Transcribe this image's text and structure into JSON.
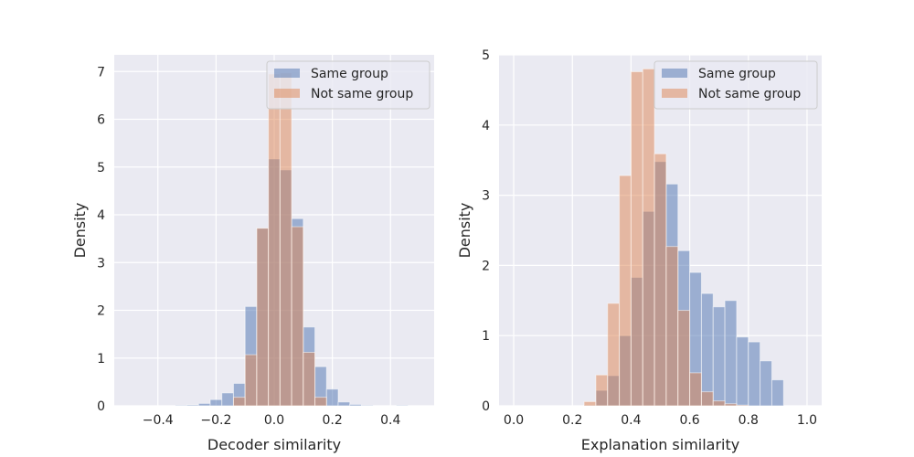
{
  "chart_data": [
    {
      "type": "histogram",
      "xlabel": "Decoder similarity",
      "ylabel": "Density",
      "xlim": [
        -0.55,
        0.55
      ],
      "ylim": [
        0,
        7.35
      ],
      "xticks": [
        -0.4,
        -0.2,
        0.0,
        0.2,
        0.4
      ],
      "xtick_labels": [
        "−0.4",
        "−0.2",
        "0.0",
        "0.2",
        "0.4"
      ],
      "yticks": [
        0,
        1,
        2,
        3,
        4,
        5,
        6,
        7
      ],
      "ytick_labels": [
        "0",
        "1",
        "2",
        "3",
        "4",
        "5",
        "6",
        "7"
      ],
      "bin_edges": [
        -0.5,
        -0.46,
        -0.42,
        -0.38,
        -0.34,
        -0.3,
        -0.26,
        -0.22,
        -0.18,
        -0.14,
        -0.1,
        -0.06,
        -0.02,
        0.02,
        0.06,
        0.1,
        0.14,
        0.18,
        0.22,
        0.26,
        0.3,
        0.34,
        0.38,
        0.42,
        0.46,
        0.5
      ],
      "series": [
        {
          "name": "Same group",
          "color": "#4c72b0",
          "values": [
            0,
            0,
            0,
            0,
            0.01,
            0.02,
            0.05,
            0.13,
            0.27,
            0.47,
            2.08,
            3.72,
            5.17,
            4.94,
            3.92,
            1.65,
            0.82,
            0.35,
            0.08,
            0.03,
            0.01,
            0,
            0,
            0.01,
            0
          ]
        },
        {
          "name": "Not same group",
          "color": "#dd8452",
          "values": [
            0,
            0,
            0,
            0,
            0,
            0,
            0,
            0,
            0,
            0.18,
            1.07,
            3.72,
            6.95,
            6.97,
            3.75,
            1.12,
            0.18,
            0,
            0,
            0,
            0,
            0,
            0,
            0,
            0
          ]
        }
      ],
      "legend": [
        "Same group",
        "Not same group"
      ],
      "legend_position": "top-right",
      "grid": true
    },
    {
      "type": "histogram",
      "xlabel": "Explanation similarity",
      "ylabel": "Density",
      "xlim": [
        -0.05,
        1.05
      ],
      "ylim": [
        0,
        5.0
      ],
      "xticks": [
        0.0,
        0.2,
        0.4,
        0.6,
        0.8,
        1.0
      ],
      "xtick_labels": [
        "0.0",
        "0.2",
        "0.4",
        "0.6",
        "0.8",
        "1.0"
      ],
      "yticks": [
        0,
        1,
        2,
        3,
        4,
        5
      ],
      "ytick_labels": [
        "0",
        "1",
        "2",
        "3",
        "4",
        "5"
      ],
      "bin_edges": [
        0.0,
        0.04,
        0.08,
        0.12,
        0.16,
        0.2,
        0.24,
        0.28,
        0.32,
        0.36,
        0.4,
        0.44,
        0.48,
        0.52,
        0.56,
        0.6,
        0.64,
        0.68,
        0.72,
        0.76,
        0.8,
        0.84,
        0.88,
        0.92,
        0.96,
        1.0
      ],
      "series": [
        {
          "name": "Same group",
          "color": "#4c72b0",
          "values": [
            0,
            0,
            0,
            0,
            0,
            0,
            0.01,
            0.22,
            0.43,
            1.0,
            1.83,
            2.77,
            3.48,
            3.16,
            2.21,
            1.9,
            1.6,
            1.41,
            1.5,
            0.98,
            0.91,
            0.64,
            0.37,
            0,
            0
          ]
        },
        {
          "name": "Not same group",
          "color": "#dd8452",
          "values": [
            0,
            0,
            0,
            0,
            0,
            0,
            0.06,
            0.44,
            1.46,
            3.28,
            4.76,
            4.8,
            3.59,
            2.27,
            1.36,
            0.47,
            0.2,
            0.07,
            0.03,
            0.01,
            0,
            0,
            0,
            0,
            0
          ]
        }
      ],
      "legend": [
        "Same group",
        "Not same group"
      ],
      "legend_position": "top-right",
      "grid": true
    }
  ]
}
